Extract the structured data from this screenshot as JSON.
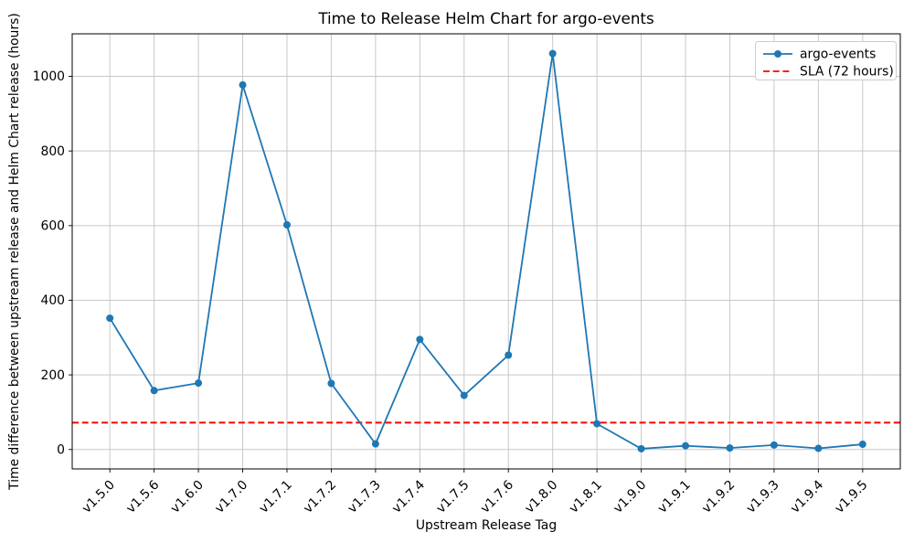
{
  "chart_data": {
    "type": "line",
    "title": "Time to Release Helm Chart for argo-events",
    "xlabel": "Upstream Release Tag",
    "ylabel": "Time difference between upstream release and Helm Chart release (hours)",
    "categories": [
      "v1.5.0",
      "v1.5.6",
      "v1.6.0",
      "v1.7.0",
      "v1.7.1",
      "v1.7.2",
      "v1.7.3",
      "v1.7.4",
      "v1.7.5",
      "v1.7.6",
      "v1.8.0",
      "v1.8.1",
      "v1.9.0",
      "v1.9.1",
      "v1.9.2",
      "v1.9.3",
      "v1.9.4",
      "v1.9.5"
    ],
    "series": [
      {
        "name": "argo-events",
        "kind": "line",
        "color": "#1f77b4",
        "marker": "circle",
        "values": [
          352,
          158,
          178,
          977,
          602,
          177,
          15,
          295,
          145,
          253,
          1061,
          69,
          2,
          10,
          4,
          12,
          3,
          14
        ]
      },
      {
        "name": "SLA (72 hours)",
        "kind": "hline",
        "color": "#ff0000",
        "dashed": true,
        "value": 72
      }
    ],
    "yticks": [
      0,
      200,
      400,
      600,
      800,
      1000
    ],
    "ylim": [
      -52,
      1114
    ],
    "grid": true,
    "legend_position": "upper right"
  },
  "colors": {
    "series_blue": "#1f77b4",
    "sla_red": "#ff0000",
    "grid_gray": "#c8c8c8",
    "background": "#ffffff",
    "legend_border": "#cccccc"
  }
}
